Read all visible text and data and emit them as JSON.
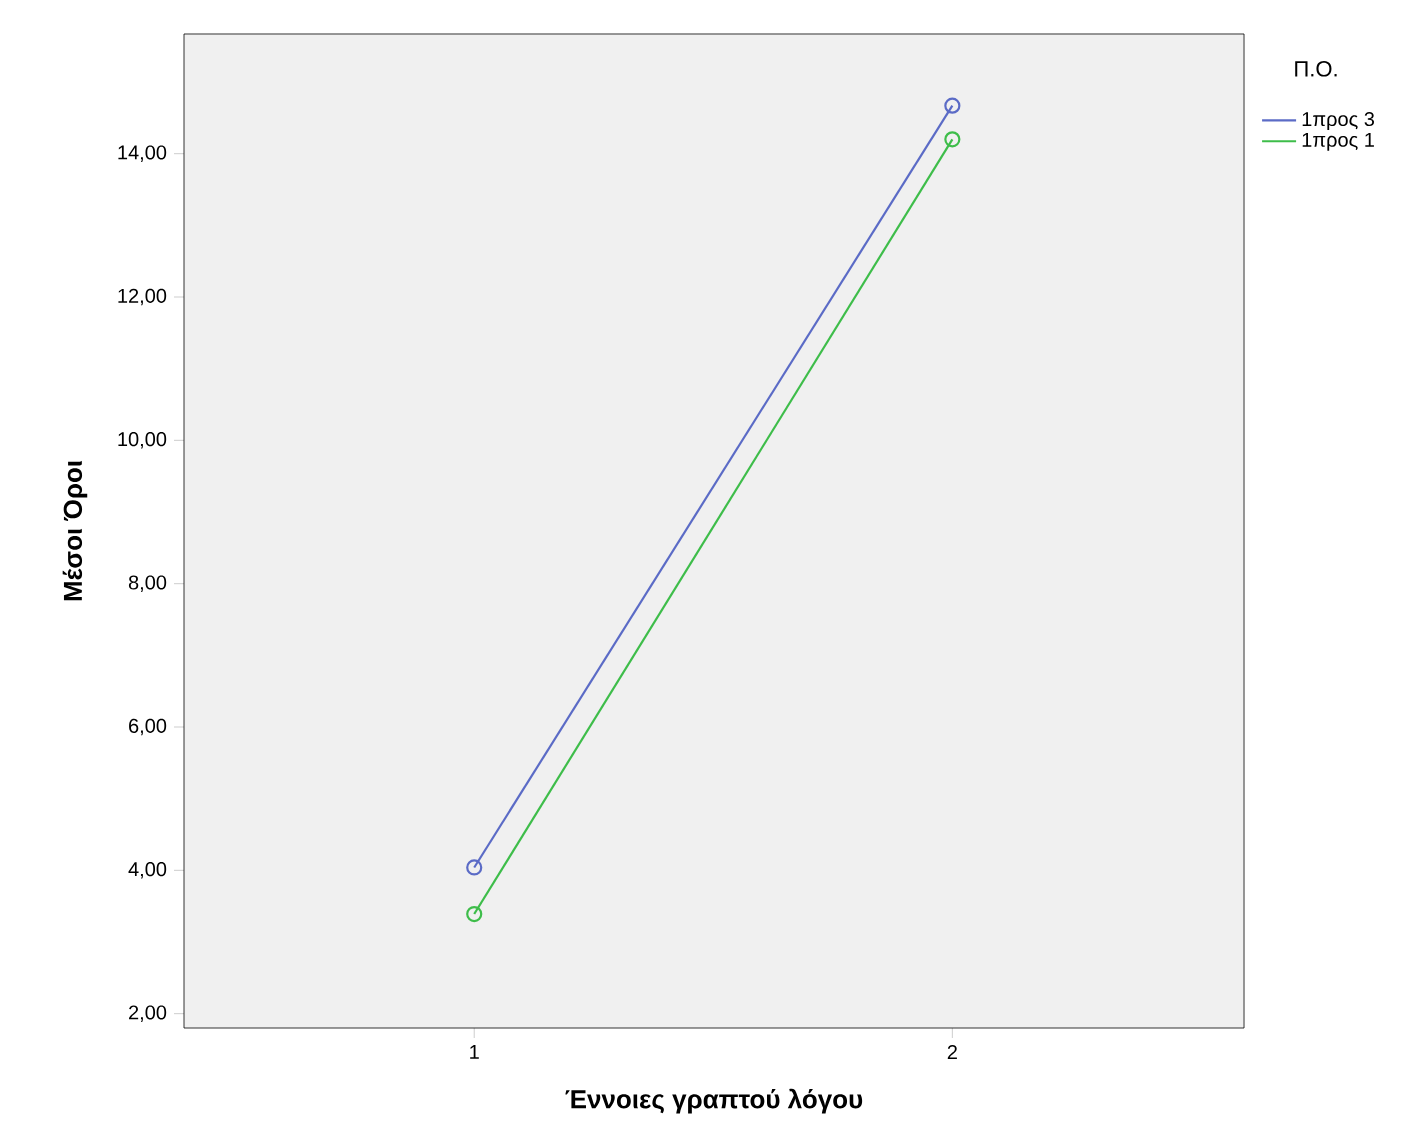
{
  "chart_data": {
    "type": "line",
    "xlabel": "Έννοιες γραπτού λόγου",
    "ylabel": "Μέσοι Όροι",
    "legend_title": "Π.Ο.",
    "categories": [
      "1",
      "2"
    ],
    "series": [
      {
        "name": "1προς 3",
        "color": "#5b6bc6",
        "values": [
          4.04,
          14.67
        ]
      },
      {
        "name": "1προς 1",
        "color": "#3ebd4a",
        "values": [
          3.39,
          14.2
        ]
      }
    ],
    "ylim": [
      1.8,
      15.67
    ],
    "yticks": [
      {
        "value": 2,
        "label": "2,00"
      },
      {
        "value": 4,
        "label": "4,00"
      },
      {
        "value": 6,
        "label": "6,00"
      },
      {
        "value": 8,
        "label": "8,00"
      },
      {
        "value": 10,
        "label": "10,00"
      },
      {
        "value": 12,
        "label": "12,00"
      },
      {
        "value": 14,
        "label": "14,00"
      }
    ],
    "legend": "top right",
    "marker": "circle",
    "line_style": "solid",
    "grid": false
  }
}
